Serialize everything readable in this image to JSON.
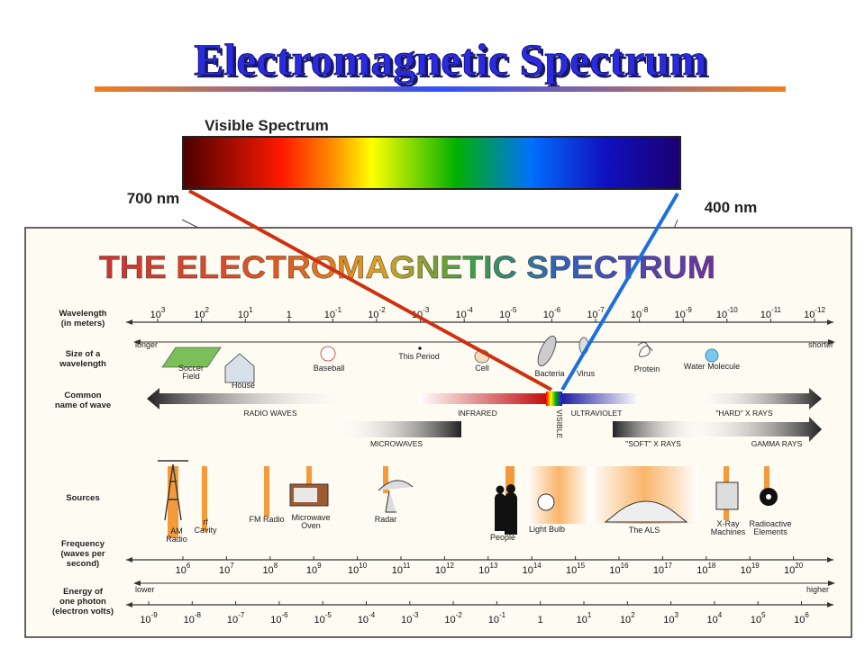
{
  "title": "Electromagnetic Spectrum",
  "visible_spectrum": {
    "label": "Visible Spectrum",
    "left": "700 nm",
    "right": "400 nm"
  },
  "panel": {
    "title": "THE ELECTROMAGNETIC SPECTRUM",
    "rows": [
      [
        "Wavelength",
        "(in meters)"
      ],
      [
        "Size of a",
        "wavelength"
      ],
      [
        "Common",
        "name of wave"
      ],
      [
        "Sources"
      ],
      [
        "Frequency",
        "(waves per",
        "second)"
      ],
      [
        "Energy of",
        "one photon",
        "(electron volts)"
      ]
    ],
    "wavelength": [
      {
        "base": "10",
        "exp": "3"
      },
      {
        "base": "10",
        "exp": "2"
      },
      {
        "base": "10",
        "exp": "1"
      },
      {
        "base": "1"
      },
      {
        "base": "10",
        "exp": "-1"
      },
      {
        "base": "10",
        "exp": "-2"
      },
      {
        "base": "10",
        "exp": "-3"
      },
      {
        "base": "10",
        "exp": "-4"
      },
      {
        "base": "10",
        "exp": "-5"
      },
      {
        "base": "10",
        "exp": "-6"
      },
      {
        "base": "10",
        "exp": "-7"
      },
      {
        "base": "10",
        "exp": "-8"
      },
      {
        "base": "10",
        "exp": "-9"
      },
      {
        "base": "10",
        "exp": "-10"
      },
      {
        "base": "10",
        "exp": "-11"
      },
      {
        "base": "10",
        "exp": "-12"
      }
    ],
    "size_direction": [
      "longer",
      "shorter"
    ],
    "sizes": [
      [
        "Soccer",
        "Field"
      ],
      [
        "House"
      ],
      [
        "Baseball"
      ],
      [
        "This Period"
      ],
      [
        "Cell"
      ],
      [
        "Bacteria"
      ],
      [
        "Virus"
      ],
      [
        "Protein"
      ],
      [
        "Water Molecule"
      ]
    ],
    "waves": [
      "RADIO WAVES",
      "INFRARED",
      "VISIBLE",
      "ULTRAVIOLET",
      "\"HARD\" X RAYS",
      "MICROWAVES",
      "\"SOFT\" X RAYS",
      "GAMMA RAYS"
    ],
    "sources": [
      [
        "AM",
        "Radio"
      ],
      [
        "rf",
        "Cavity"
      ],
      [
        "FM Radio"
      ],
      [
        "Microwave",
        "Oven"
      ],
      [
        "Radar"
      ],
      [
        "People"
      ],
      [
        "Light Bulb"
      ],
      [
        "The ALS"
      ],
      [
        "X-Ray",
        "Machines"
      ],
      [
        "Radioactive",
        "Elements"
      ]
    ],
    "frequency": [
      {
        "base": "10",
        "exp": "6"
      },
      {
        "base": "10",
        "exp": "7"
      },
      {
        "base": "10",
        "exp": "8"
      },
      {
        "base": "10",
        "exp": "9"
      },
      {
        "base": "10",
        "exp": "10"
      },
      {
        "base": "10",
        "exp": "11"
      },
      {
        "base": "10",
        "exp": "12"
      },
      {
        "base": "10",
        "exp": "13"
      },
      {
        "base": "10",
        "exp": "14"
      },
      {
        "base": "10",
        "exp": "15"
      },
      {
        "base": "10",
        "exp": "16"
      },
      {
        "base": "10",
        "exp": "17"
      },
      {
        "base": "10",
        "exp": "18"
      },
      {
        "base": "10",
        "exp": "19"
      },
      {
        "base": "10",
        "exp": "20"
      }
    ],
    "energy_direction": [
      "lower",
      "higher"
    ],
    "energy": [
      {
        "base": "10",
        "exp": "-9"
      },
      {
        "base": "10",
        "exp": "-8"
      },
      {
        "base": "10",
        "exp": "-7"
      },
      {
        "base": "10",
        "exp": "-6"
      },
      {
        "base": "10",
        "exp": "-5"
      },
      {
        "base": "10",
        "exp": "-4"
      },
      {
        "base": "10",
        "exp": "-3"
      },
      {
        "base": "10",
        "exp": "-2"
      },
      {
        "base": "10",
        "exp": "-1"
      },
      {
        "base": "1"
      },
      {
        "base": "10",
        "exp": "1"
      },
      {
        "base": "10",
        "exp": "2"
      },
      {
        "base": "10",
        "exp": "3"
      },
      {
        "base": "10",
        "exp": "4"
      },
      {
        "base": "10",
        "exp": "5"
      },
      {
        "base": "10",
        "exp": "6"
      }
    ]
  }
}
